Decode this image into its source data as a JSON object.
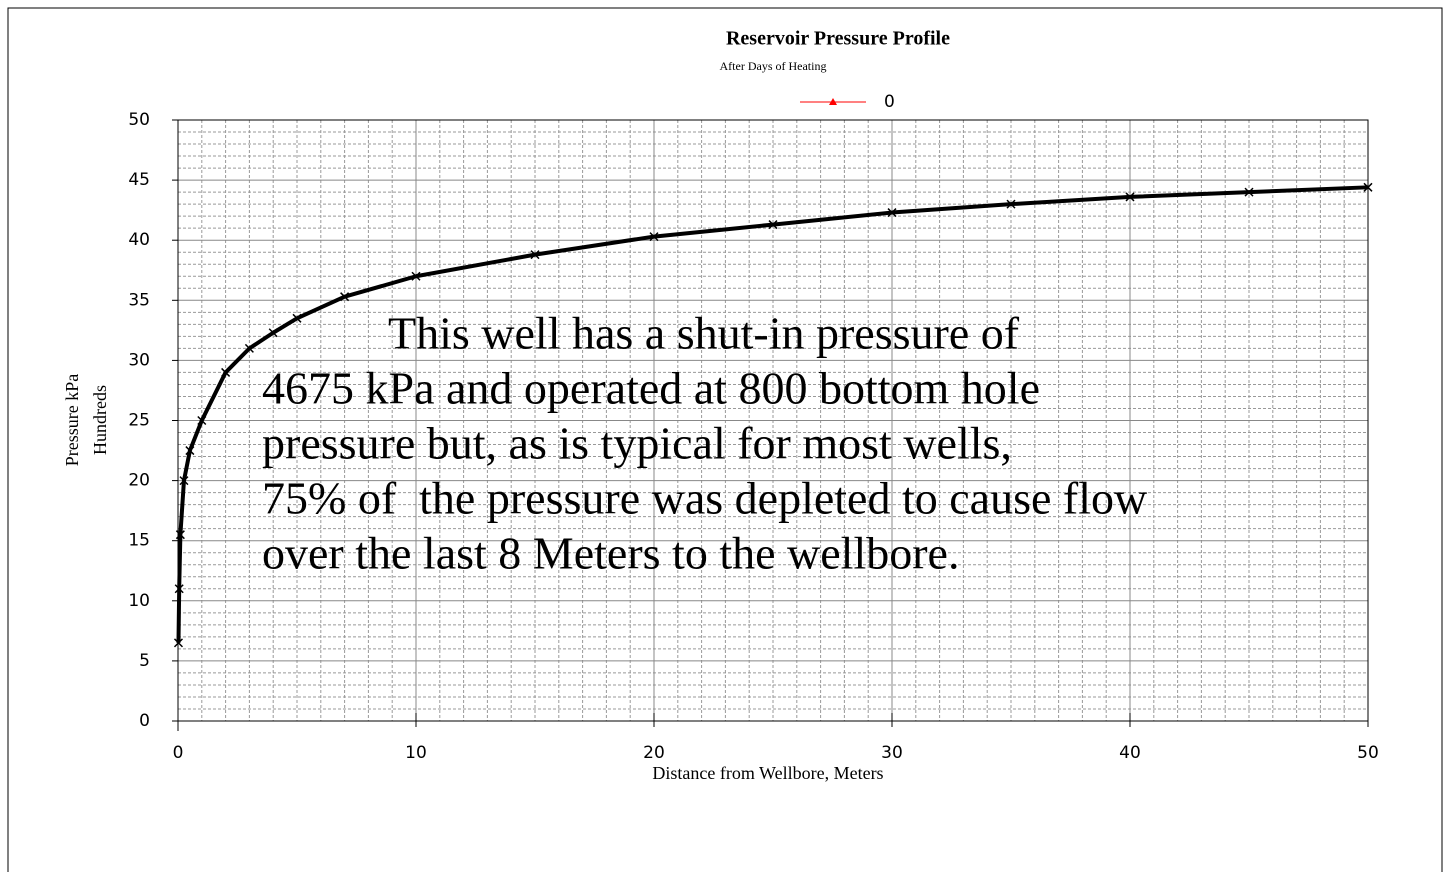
{
  "chart_data": {
    "type": "line",
    "title": "Reservoir Pressure Profile",
    "subtitle": "After Days of Heating",
    "x_label": "Distance from Wellbore, Meters",
    "y_label": [
      "Pressure kPa",
      "Hundreds"
    ],
    "x": [
      0.02,
      0.05,
      0.1,
      0.25,
      0.5,
      1,
      2,
      3,
      4,
      5,
      7,
      10,
      15,
      20,
      25,
      30,
      35,
      40,
      45,
      50
    ],
    "series": [
      {
        "name": "0",
        "color": "#000000",
        "legend_color": "#ff0000",
        "values": [
          6.5,
          11,
          15.5,
          20,
          22.5,
          25,
          29,
          31,
          32.3,
          33.5,
          35.3,
          37,
          38.8,
          40.3,
          41.3,
          42.3,
          43,
          43.6,
          44,
          44.4
        ]
      }
    ],
    "xlim": [
      0,
      50
    ],
    "xticks": [
      0,
      10,
      20,
      30,
      40,
      50
    ],
    "ylim": [
      0,
      50
    ],
    "yticks": [
      0,
      5,
      10,
      15,
      20,
      25,
      30,
      35,
      40,
      45,
      50
    ],
    "grid": true,
    "legend": "top",
    "annotation": [
      "This well has a shut-in pressure of",
      "4675 kPa and operated at 800 bottom hole",
      "pressure but, as is typical for most wells,",
      "75% of  the pressure was depleted to cause flow",
      "over the last 8 Meters to the wellbore."
    ]
  }
}
